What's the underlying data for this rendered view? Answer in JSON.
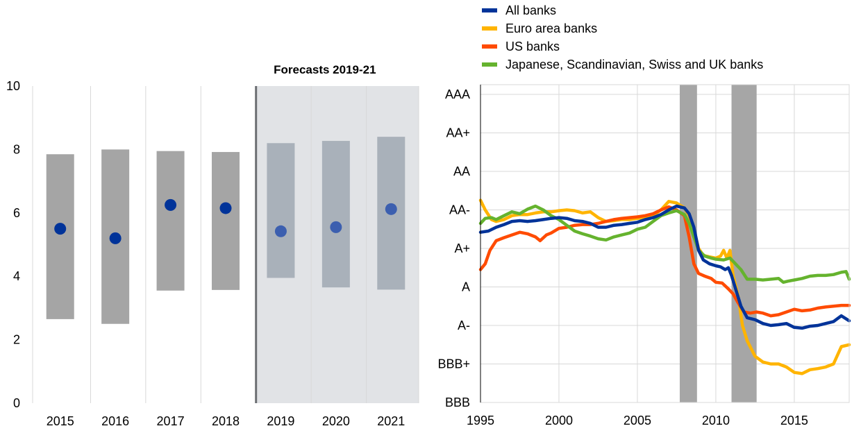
{
  "chart_data": [
    {
      "type": "bar",
      "subtype": "range-bar-with-median-dot",
      "title": "",
      "shaded_region_label": "Forecasts 2019-21",
      "shaded_categories": [
        "2019",
        "2020",
        "2021"
      ],
      "categories": [
        "2015",
        "2016",
        "2017",
        "2018",
        "2019",
        "2020",
        "2021"
      ],
      "series": [
        {
          "range_low": [
            2.65,
            2.5,
            3.55,
            3.57,
            3.95,
            3.65,
            3.58
          ],
          "range_high": [
            7.85,
            8.0,
            7.95,
            7.92,
            8.2,
            8.27,
            8.4
          ],
          "point": [
            5.5,
            5.2,
            6.25,
            6.15,
            5.42,
            5.55,
            6.12
          ]
        }
      ],
      "ylim": [
        0,
        10
      ],
      "yticks": [
        "0",
        "2",
        "4",
        "6",
        "8",
        "10"
      ],
      "xlabel": "",
      "ylabel": "",
      "grid": "vertical",
      "colors": {
        "historical_bar": "#A5A5A5",
        "historical_dot": "#003399",
        "forecast_bar": "#A9B1BA",
        "forecast_dot": "#3C5FAF",
        "forecast_background": "#E1E3E6",
        "divider": "#6B6E72",
        "grid": "#D8D8D8"
      }
    },
    {
      "type": "line",
      "title": "",
      "xlim": [
        1995,
        2018.5
      ],
      "xticks": [
        "1995",
        "2000",
        "2005",
        "2010",
        "2015"
      ],
      "y_categories": [
        "BBB",
        "BBB+",
        "A-",
        "A",
        "A+",
        "AA-",
        "AA",
        "AA+",
        "AAA"
      ],
      "ylim": [
        0,
        8
      ],
      "legend_position": "top",
      "grid": "horizontal and vertical",
      "shaded_periods": [
        [
          2007.7,
          2008.8
        ],
        [
          2011.0,
          2012.6
        ]
      ],
      "shaded_color": "#A6A6A6",
      "series": [
        {
          "name": "All banks",
          "color": "#003399",
          "points": [
            [
              1995.0,
              4.42
            ],
            [
              1995.5,
              4.45
            ],
            [
              1996.0,
              4.55
            ],
            [
              1996.5,
              4.62
            ],
            [
              1997.0,
              4.7
            ],
            [
              1997.5,
              4.72
            ],
            [
              1998.0,
              4.7
            ],
            [
              1998.5,
              4.72
            ],
            [
              1999.0,
              4.75
            ],
            [
              1999.5,
              4.78
            ],
            [
              2000.0,
              4.8
            ],
            [
              2000.5,
              4.78
            ],
            [
              2001.0,
              4.72
            ],
            [
              2001.5,
              4.7
            ],
            [
              2002.0,
              4.65
            ],
            [
              2002.5,
              4.55
            ],
            [
              2003.0,
              4.55
            ],
            [
              2003.5,
              4.6
            ],
            [
              2004.0,
              4.62
            ],
            [
              2004.5,
              4.65
            ],
            [
              2005.0,
              4.68
            ],
            [
              2005.5,
              4.75
            ],
            [
              2006.0,
              4.8
            ],
            [
              2006.5,
              4.88
            ],
            [
              2007.0,
              5.0
            ],
            [
              2007.5,
              5.1
            ],
            [
              2008.0,
              5.05
            ],
            [
              2008.3,
              4.9
            ],
            [
              2008.6,
              4.55
            ],
            [
              2008.9,
              3.95
            ],
            [
              2009.2,
              3.7
            ],
            [
              2009.6,
              3.6
            ],
            [
              2010.0,
              3.55
            ],
            [
              2010.3,
              3.52
            ],
            [
              2010.6,
              3.45
            ],
            [
              2010.8,
              3.5
            ],
            [
              2011.0,
              3.3
            ],
            [
              2011.3,
              2.9
            ],
            [
              2011.6,
              2.5
            ],
            [
              2012.0,
              2.2
            ],
            [
              2012.5,
              2.15
            ],
            [
              2013.0,
              2.05
            ],
            [
              2013.5,
              2.0
            ],
            [
              2014.0,
              2.02
            ],
            [
              2014.5,
              2.05
            ],
            [
              2015.0,
              1.95
            ],
            [
              2015.5,
              1.93
            ],
            [
              2016.0,
              1.98
            ],
            [
              2016.5,
              2.0
            ],
            [
              2017.0,
              2.05
            ],
            [
              2017.5,
              2.1
            ],
            [
              2018.0,
              2.25
            ],
            [
              2018.5,
              2.12
            ]
          ]
        },
        {
          "name": "Euro area banks",
          "color": "#FFB400",
          "points": [
            [
              1995.0,
              5.25
            ],
            [
              1995.3,
              5.0
            ],
            [
              1995.7,
              4.75
            ],
            [
              1996.0,
              4.7
            ],
            [
              1996.5,
              4.75
            ],
            [
              1997.0,
              4.85
            ],
            [
              1997.5,
              4.88
            ],
            [
              1998.0,
              4.88
            ],
            [
              1998.5,
              4.92
            ],
            [
              1999.0,
              4.95
            ],
            [
              1999.5,
              4.95
            ],
            [
              2000.0,
              4.98
            ],
            [
              2000.5,
              5.0
            ],
            [
              2001.0,
              4.98
            ],
            [
              2001.5,
              4.92
            ],
            [
              2002.0,
              4.95
            ],
            [
              2002.5,
              4.8
            ],
            [
              2003.0,
              4.7
            ],
            [
              2003.5,
              4.72
            ],
            [
              2004.0,
              4.75
            ],
            [
              2004.5,
              4.75
            ],
            [
              2005.0,
              4.78
            ],
            [
              2005.5,
              4.8
            ],
            [
              2006.0,
              4.85
            ],
            [
              2006.5,
              5.0
            ],
            [
              2007.0,
              5.22
            ],
            [
              2007.5,
              5.18
            ],
            [
              2008.0,
              5.05
            ],
            [
              2008.3,
              4.85
            ],
            [
              2008.6,
              4.5
            ],
            [
              2008.9,
              4.0
            ],
            [
              2009.2,
              3.82
            ],
            [
              2009.6,
              3.78
            ],
            [
              2010.0,
              3.75
            ],
            [
              2010.3,
              3.8
            ],
            [
              2010.5,
              3.95
            ],
            [
              2010.7,
              3.75
            ],
            [
              2010.9,
              3.95
            ],
            [
              2011.1,
              3.3
            ],
            [
              2011.4,
              2.8
            ],
            [
              2011.7,
              2.0
            ],
            [
              2012.0,
              1.6
            ],
            [
              2012.5,
              1.2
            ],
            [
              2013.0,
              1.05
            ],
            [
              2013.5,
              1.0
            ],
            [
              2014.0,
              1.0
            ],
            [
              2014.5,
              0.92
            ],
            [
              2015.0,
              0.78
            ],
            [
              2015.5,
              0.75
            ],
            [
              2016.0,
              0.85
            ],
            [
              2016.5,
              0.88
            ],
            [
              2017.0,
              0.92
            ],
            [
              2017.5,
              1.0
            ],
            [
              2018.0,
              1.45
            ],
            [
              2018.5,
              1.5
            ]
          ]
        },
        {
          "name": "US banks",
          "color": "#FF4B00",
          "points": [
            [
              1995.0,
              3.45
            ],
            [
              1995.3,
              3.6
            ],
            [
              1995.6,
              3.95
            ],
            [
              1996.0,
              4.2
            ],
            [
              1996.5,
              4.28
            ],
            [
              1997.0,
              4.35
            ],
            [
              1997.5,
              4.42
            ],
            [
              1998.0,
              4.38
            ],
            [
              1998.5,
              4.3
            ],
            [
              1998.8,
              4.2
            ],
            [
              1999.2,
              4.35
            ],
            [
              1999.5,
              4.4
            ],
            [
              2000.0,
              4.52
            ],
            [
              2000.5,
              4.55
            ],
            [
              2001.0,
              4.6
            ],
            [
              2001.5,
              4.62
            ],
            [
              2002.0,
              4.62
            ],
            [
              2002.5,
              4.65
            ],
            [
              2003.0,
              4.7
            ],
            [
              2003.5,
              4.75
            ],
            [
              2004.0,
              4.78
            ],
            [
              2004.5,
              4.8
            ],
            [
              2005.0,
              4.82
            ],
            [
              2005.5,
              4.85
            ],
            [
              2006.0,
              4.9
            ],
            [
              2006.5,
              5.0
            ],
            [
              2007.0,
              5.08
            ],
            [
              2007.5,
              5.0
            ],
            [
              2008.0,
              4.85
            ],
            [
              2008.3,
              4.3
            ],
            [
              2008.6,
              3.6
            ],
            [
              2008.9,
              3.35
            ],
            [
              2009.3,
              3.28
            ],
            [
              2009.7,
              3.22
            ],
            [
              2010.0,
              3.12
            ],
            [
              2010.4,
              3.1
            ],
            [
              2010.8,
              2.95
            ],
            [
              2011.1,
              2.82
            ],
            [
              2011.4,
              2.6
            ],
            [
              2011.8,
              2.35
            ],
            [
              2012.2,
              2.32
            ],
            [
              2012.6,
              2.35
            ],
            [
              2013.0,
              2.32
            ],
            [
              2013.5,
              2.25
            ],
            [
              2014.0,
              2.28
            ],
            [
              2014.5,
              2.35
            ],
            [
              2015.0,
              2.42
            ],
            [
              2015.5,
              2.38
            ],
            [
              2016.0,
              2.4
            ],
            [
              2016.5,
              2.45
            ],
            [
              2017.0,
              2.48
            ],
            [
              2017.5,
              2.5
            ],
            [
              2018.0,
              2.52
            ],
            [
              2018.5,
              2.52
            ]
          ]
        },
        {
          "name": "Japanese, Scandinavian, Swiss and UK banks",
          "color": "#65B32E",
          "points": [
            [
              1995.0,
              4.65
            ],
            [
              1995.3,
              4.78
            ],
            [
              1995.7,
              4.8
            ],
            [
              1996.0,
              4.75
            ],
            [
              1996.5,
              4.85
            ],
            [
              1997.0,
              4.95
            ],
            [
              1997.5,
              4.9
            ],
            [
              1998.0,
              5.02
            ],
            [
              1998.5,
              5.1
            ],
            [
              1999.0,
              5.0
            ],
            [
              1999.5,
              4.85
            ],
            [
              2000.0,
              4.75
            ],
            [
              2000.5,
              4.6
            ],
            [
              2001.0,
              4.45
            ],
            [
              2001.5,
              4.38
            ],
            [
              2002.0,
              4.32
            ],
            [
              2002.5,
              4.25
            ],
            [
              2003.0,
              4.22
            ],
            [
              2003.5,
              4.3
            ],
            [
              2004.0,
              4.35
            ],
            [
              2004.5,
              4.4
            ],
            [
              2005.0,
              4.5
            ],
            [
              2005.5,
              4.55
            ],
            [
              2006.0,
              4.7
            ],
            [
              2006.5,
              4.85
            ],
            [
              2007.0,
              4.92
            ],
            [
              2007.5,
              4.98
            ],
            [
              2008.0,
              4.88
            ],
            [
              2008.3,
              4.65
            ],
            [
              2008.6,
              4.3
            ],
            [
              2008.9,
              3.95
            ],
            [
              2009.3,
              3.8
            ],
            [
              2009.7,
              3.75
            ],
            [
              2010.0,
              3.72
            ],
            [
              2010.5,
              3.7
            ],
            [
              2010.9,
              3.75
            ],
            [
              2011.2,
              3.62
            ],
            [
              2011.6,
              3.45
            ],
            [
              2012.0,
              3.2
            ],
            [
              2012.5,
              3.2
            ],
            [
              2013.0,
              3.18
            ],
            [
              2013.5,
              3.2
            ],
            [
              2014.0,
              3.22
            ],
            [
              2014.3,
              3.12
            ],
            [
              2014.6,
              3.15
            ],
            [
              2015.0,
              3.18
            ],
            [
              2015.5,
              3.22
            ],
            [
              2016.0,
              3.28
            ],
            [
              2016.5,
              3.3
            ],
            [
              2017.0,
              3.3
            ],
            [
              2017.5,
              3.32
            ],
            [
              2018.0,
              3.38
            ],
            [
              2018.3,
              3.4
            ],
            [
              2018.5,
              3.2
            ]
          ]
        }
      ],
      "colors": {
        "grid": "#D8D8D8",
        "axis": "#000000"
      }
    }
  ]
}
